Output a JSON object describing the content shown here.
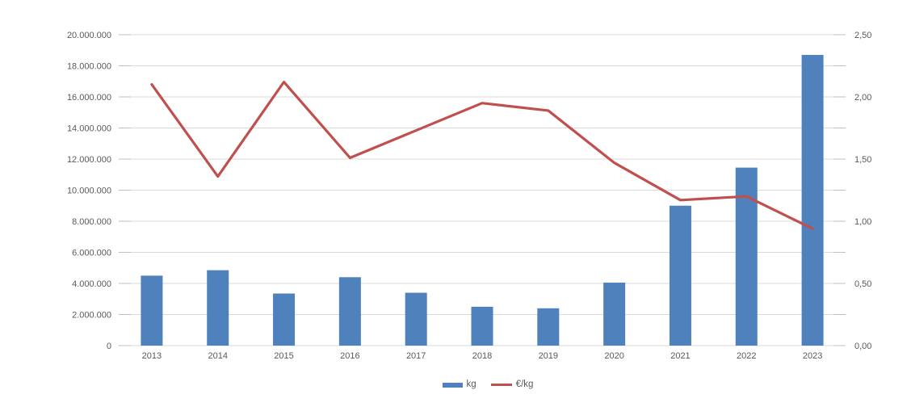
{
  "chart_data": {
    "type": "bar",
    "subtype": "combo-bar-line-dual-axis",
    "title": "",
    "xlabel": "",
    "ylabel_left": "",
    "ylabel_right": "",
    "categories": [
      "2013",
      "2014",
      "2015",
      "2016",
      "2017",
      "2018",
      "2019",
      "2020",
      "2021",
      "2022",
      "2023"
    ],
    "series": [
      {
        "name": "kg",
        "type": "bar",
        "axis": "left",
        "color": "#4F81BD",
        "values": [
          4500000,
          4850000,
          3350000,
          4400000,
          3400000,
          2500000,
          2400000,
          4050000,
          9000000,
          11450000,
          18700000
        ]
      },
      {
        "name": "€/kg",
        "type": "line",
        "axis": "right",
        "color": "#C0504D",
        "values": [
          2.1,
          1.36,
          2.12,
          1.51,
          1.73,
          1.95,
          1.89,
          1.47,
          1.17,
          1.2,
          0.94
        ]
      }
    ],
    "left_axis": {
      "min": 0,
      "max": 20000000,
      "step": 2000000,
      "tick_labels": [
        "0",
        "2.000.000",
        "4.000.000",
        "6.000.000",
        "8.000.000",
        "10.000.000",
        "12.000.000",
        "14.000.000",
        "16.000.000",
        "18.000.000",
        "20.000.000"
      ]
    },
    "right_axis": {
      "min": 0,
      "max": 2.5,
      "step": 0.25,
      "label_every_n_gridlines": 2,
      "tick_labels": [
        "0,00",
        "0,50",
        "1,00",
        "1,50",
        "2,00",
        "2,50"
      ]
    },
    "legend": {
      "position": "bottom",
      "items": [
        {
          "label": "kg",
          "marker": "square",
          "color": "#4F81BD"
        },
        {
          "label": "€/kg",
          "marker": "line",
          "color": "#C0504D"
        }
      ]
    },
    "grid": true,
    "colors": {
      "gridline": "#D9D9D9",
      "tick_mark": "#BFBFBF",
      "axis_text": "#595959",
      "background": "#FFFFFF"
    }
  }
}
